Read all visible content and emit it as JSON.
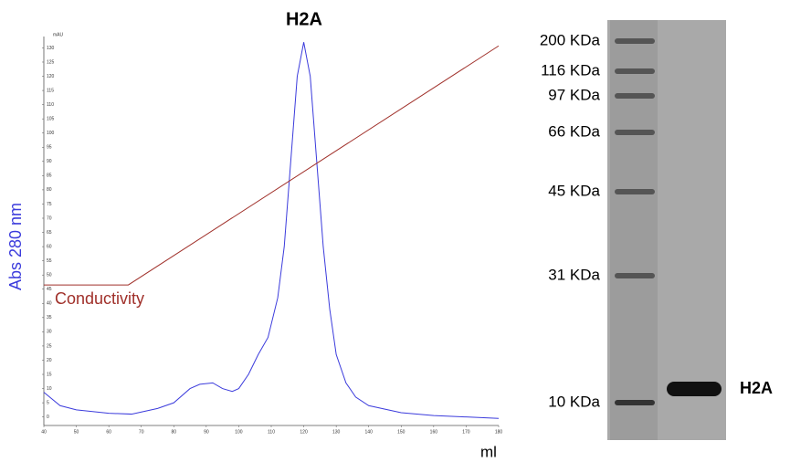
{
  "chart_data": {
    "type": "line",
    "title": "H2A",
    "y_label": "Abs 280 nm",
    "y_unit": "mAU",
    "x_label": "ml",
    "annotation": "Conductivity",
    "xlim": [
      40,
      180
    ],
    "xticks": [
      40,
      50,
      60,
      70,
      80,
      90,
      100,
      110,
      120,
      130,
      140,
      150,
      160,
      170,
      180
    ],
    "ylim": [
      -3,
      134
    ],
    "yticks": [
      0,
      5,
      10,
      15,
      20,
      25,
      30,
      35,
      40,
      45,
      50,
      55,
      60,
      65,
      70,
      75,
      80,
      85,
      90,
      95,
      100,
      105,
      110,
      115,
      120,
      125,
      130
    ],
    "series": [
      {
        "name": "Abs 280 nm",
        "color": "#3b3bdc",
        "x": [
          40,
          45,
          50,
          60,
          67,
          75,
          80,
          85,
          88,
          92,
          95,
          98,
          100,
          103,
          106,
          109,
          112,
          114,
          116,
          118,
          120,
          122,
          124,
          126,
          128,
          130,
          133,
          136,
          140,
          150,
          160,
          170,
          180
        ],
        "values": [
          8.7,
          4,
          2.5,
          1.3,
          1,
          3,
          5,
          10,
          11.5,
          12,
          10,
          9,
          10,
          15,
          22,
          28,
          42,
          60,
          90,
          120,
          132,
          120,
          90,
          60,
          38,
          22,
          12,
          7,
          4,
          1.5,
          0.5,
          0,
          -0.5
        ]
      },
      {
        "name": "Conductivity",
        "color": "#a0302a",
        "x": [
          40,
          66,
          180
        ],
        "values": [
          46.5,
          46.5,
          130.7
        ]
      }
    ]
  },
  "gel": {
    "markers": [
      "200 KDa",
      "116 KDa",
      "97 KDa",
      "66 KDa",
      "45 KDa",
      "31 KDa",
      "10 KDa"
    ],
    "band_label": "H2A"
  }
}
